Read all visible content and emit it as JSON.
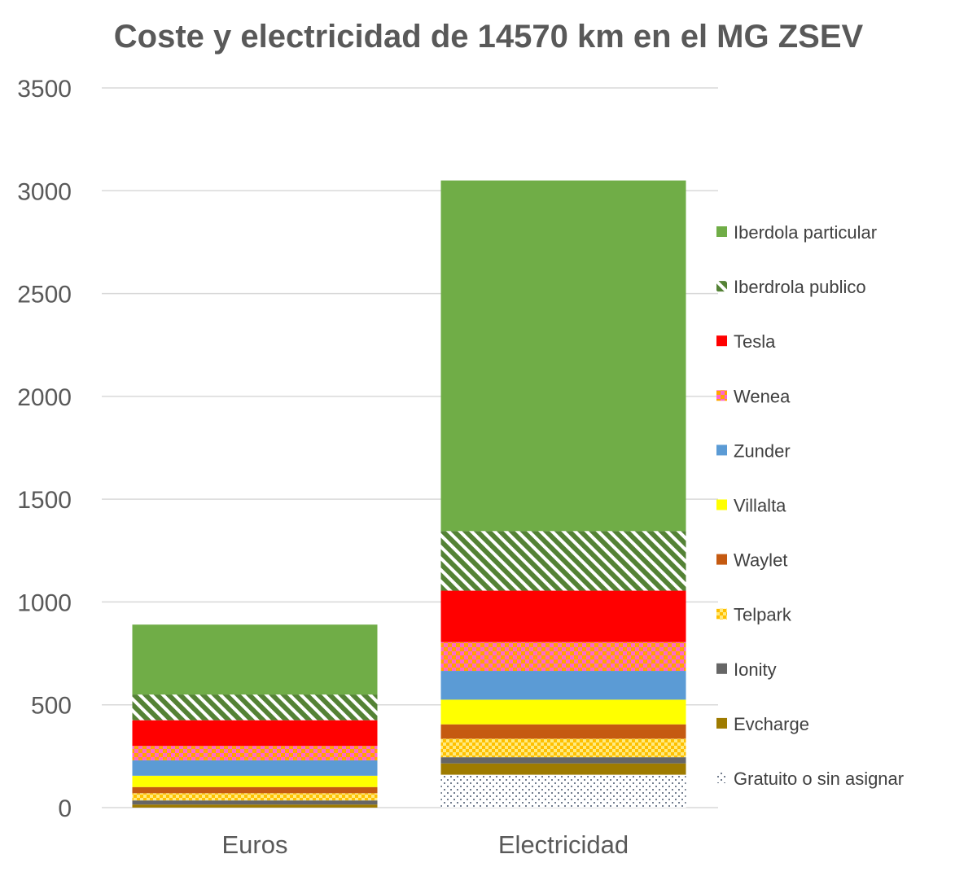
{
  "chart_data": {
    "type": "bar",
    "stacked": true,
    "title": "Coste y electricidad de 14570 km en el MG ZSEV",
    "xlabel": "",
    "ylabel": "",
    "categories": [
      "Euros",
      "Electricidad"
    ],
    "ylim": [
      0,
      3500
    ],
    "yticks": [
      0,
      500,
      1000,
      1500,
      2000,
      2500,
      3000,
      3500
    ],
    "grid": true,
    "legend_position": "right",
    "series": [
      {
        "name": "Gratuito o sin asignar",
        "values": [
          0,
          160
        ],
        "color": "#44546A",
        "pattern": "dots"
      },
      {
        "name": "Evcharge",
        "values": [
          15,
          55
        ],
        "color": "#9E7B00",
        "pattern": "solid"
      },
      {
        "name": "Ionity",
        "values": [
          20,
          30
        ],
        "color": "#666666",
        "pattern": "solid"
      },
      {
        "name": "Telpark",
        "values": [
          35,
          90
        ],
        "color": "#FFC000",
        "pattern": "checker"
      },
      {
        "name": "Waylet",
        "values": [
          30,
          70
        ],
        "color": "#C55A11",
        "pattern": "solid"
      },
      {
        "name": "Villalta",
        "values": [
          55,
          120
        ],
        "color": "#FFFF00",
        "pattern": "solid"
      },
      {
        "name": "Zunder",
        "values": [
          75,
          140
        ],
        "color": "#5B9BD5",
        "pattern": "solid"
      },
      {
        "name": "Wenea",
        "values": [
          70,
          140
        ],
        "color": "#FF66CC",
        "pattern": "checker-orange"
      },
      {
        "name": "Tesla",
        "values": [
          125,
          250
        ],
        "color": "#FF0000",
        "pattern": "solid"
      },
      {
        "name": "Iberdrola  publico",
        "values": [
          125,
          290
        ],
        "color": "#548235",
        "pattern": "stripes"
      },
      {
        "name": "Iberdola particular",
        "values": [
          340,
          1705
        ],
        "color": "#70AD47",
        "pattern": "solid"
      }
    ],
    "legend_order": [
      "Iberdola particular",
      "Iberdrola  publico",
      "Tesla",
      "Wenea",
      "Zunder",
      "Villalta",
      "Waylet",
      "Telpark",
      "Ionity",
      "Evcharge",
      "Gratuito o sin asignar"
    ]
  }
}
